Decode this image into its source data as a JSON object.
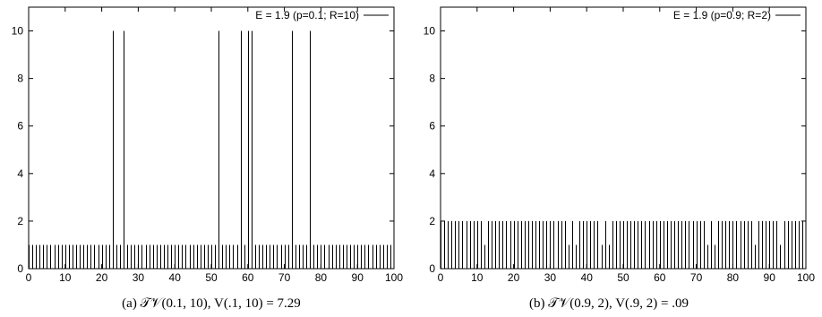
{
  "chart_data": [
    {
      "type": "bar",
      "legend": "E = 1.9 (p=0.1; R=10)",
      "legend_position": "top-right",
      "caption": "(a) 𝒯𝒱(0.1, 10),   V(.1, 10) = 7.29",
      "xlim": [
        0,
        100
      ],
      "ylim": [
        0,
        11
      ],
      "xticks": [
        0,
        10,
        20,
        30,
        40,
        50,
        60,
        70,
        80,
        90,
        100
      ],
      "yticks": [
        0,
        2,
        4,
        6,
        8,
        10
      ],
      "grid": false,
      "base_value": 1,
      "x_range": [
        0,
        99
      ],
      "exceptions": {
        "23": 10,
        "26": 10,
        "52": 10,
        "58": 10,
        "60": 10,
        "61": 10,
        "72": 10,
        "77": 10
      }
    },
    {
      "type": "bar",
      "legend": "E = 1.9 (p=0.9; R=2)",
      "legend_position": "top-right",
      "caption": "(b) 𝒯𝒱(0.9, 2),   V(.9, 2) = .09",
      "xlim": [
        0,
        100
      ],
      "ylim": [
        0,
        11
      ],
      "xticks": [
        0,
        10,
        20,
        30,
        40,
        50,
        60,
        70,
        80,
        90,
        100
      ],
      "yticks": [
        0,
        2,
        4,
        6,
        8,
        10
      ],
      "grid": false,
      "base_value": 2,
      "x_range": [
        0,
        99
      ],
      "exceptions": {
        "12": 1,
        "35": 1,
        "37": 1,
        "44": 1,
        "46": 1,
        "73": 1,
        "75": 1,
        "86": 1,
        "93": 1
      }
    }
  ]
}
